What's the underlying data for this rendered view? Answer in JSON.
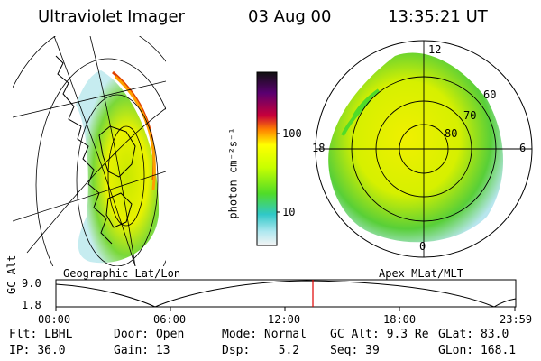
{
  "header": {
    "instrument": "Ultraviolet Imager",
    "date": "03 Aug 00",
    "time": "13:35:21 UT"
  },
  "left_panel": {
    "caption": "Geographic Lat/Lon"
  },
  "right_panel": {
    "caption": "Apex MLat/MLT",
    "mlt_labels": {
      "top": "12",
      "left": "18",
      "right": "6",
      "bottom": "0"
    },
    "lat_labels": [
      "60",
      "70",
      "80"
    ]
  },
  "colorbar": {
    "unit": "photon cm⁻²s⁻¹",
    "ticks": [
      "100",
      "10"
    ],
    "colors": [
      "#101010",
      "#5a0070",
      "#9a0070",
      "#d40030",
      "#ff8000",
      "#ffff00",
      "#c8ff00",
      "#50dc28",
      "#30c8c8",
      "#b0e8f0",
      "#f4f4f4"
    ]
  },
  "altitude_plot": {
    "ylabel": "GC Alt",
    "yticks": [
      "9.0",
      "1.8"
    ],
    "xticks": [
      "00:00",
      "06:00",
      "12:00",
      "18:00",
      "23:59"
    ],
    "cursor_color": "#e00000"
  },
  "status": {
    "row1": [
      {
        "label": "Flt:",
        "value": "LBHL"
      },
      {
        "label": "Door:",
        "value": "Open"
      },
      {
        "label": "Mode:",
        "value": "Normal"
      },
      {
        "label": "GC Alt:",
        "value": "9.3 Re"
      },
      {
        "label": "GLat:",
        "value": "83.0"
      }
    ],
    "row2": [
      {
        "label": "IP:",
        "value": "36.0"
      },
      {
        "label": "Gain:",
        "value": "13"
      },
      {
        "label": "Dsp:",
        "value": "5.2"
      },
      {
        "label": "Seq:",
        "value": "39"
      },
      {
        "label": "GLon:",
        "value": "168.1"
      }
    ]
  }
}
